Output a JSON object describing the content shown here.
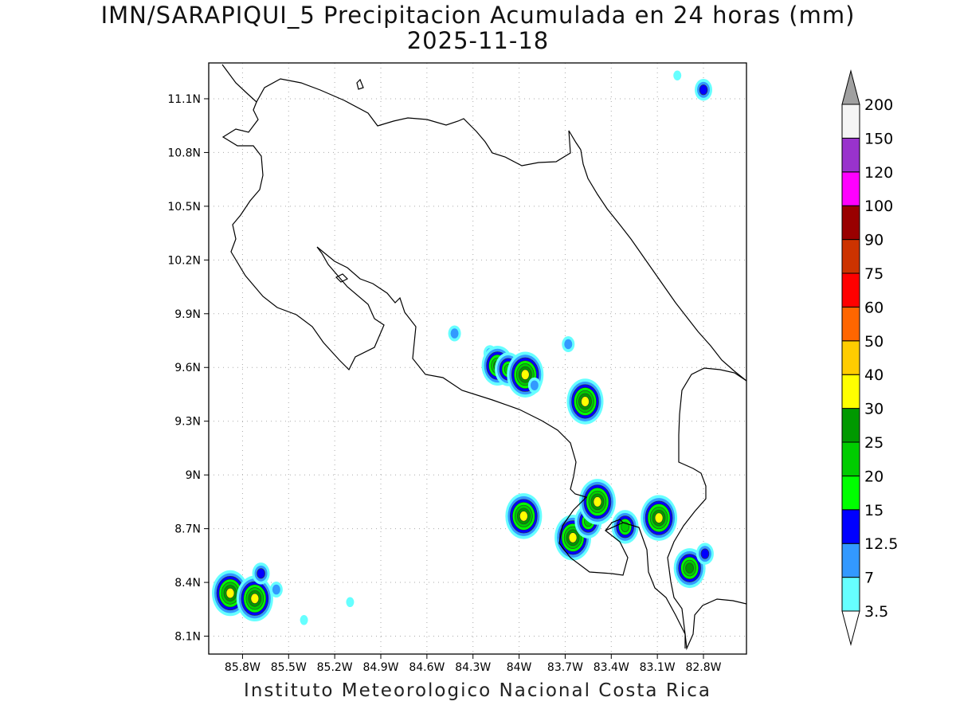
{
  "title_line1": "IMN/SARAPIQUI_5 Precipitacion Acumulada en 24 horas (mm)",
  "title_line2": "2025-11-18",
  "footer": "Instituto Meteorologico Nacional Costa Rica",
  "map": {
    "lon_range": [
      -86.02,
      -82.52
    ],
    "lat_range": [
      8.0,
      11.3
    ],
    "lon_ticks": [
      {
        "value": -85.8,
        "label": "85.8W"
      },
      {
        "value": -85.5,
        "label": "85.5W"
      },
      {
        "value": -85.2,
        "label": "85.2W"
      },
      {
        "value": -84.9,
        "label": "84.9W"
      },
      {
        "value": -84.6,
        "label": "84.6W"
      },
      {
        "value": -84.3,
        "label": "84.3W"
      },
      {
        "value": -84.0,
        "label": "84W"
      },
      {
        "value": -83.7,
        "label": "83.7W"
      },
      {
        "value": -83.4,
        "label": "83.4W"
      },
      {
        "value": -83.1,
        "label": "83.1W"
      },
      {
        "value": -82.8,
        "label": "82.8W"
      }
    ],
    "lat_ticks": [
      {
        "value": 8.1,
        "label": "8.1N"
      },
      {
        "value": 8.4,
        "label": "8.4N"
      },
      {
        "value": 8.7,
        "label": "8.7N"
      },
      {
        "value": 9.0,
        "label": "9N"
      },
      {
        "value": 9.3,
        "label": "9.3N"
      },
      {
        "value": 9.6,
        "label": "9.6N"
      },
      {
        "value": 9.9,
        "label": "9.9N"
      },
      {
        "value": 10.2,
        "label": "10.2N"
      },
      {
        "value": 10.5,
        "label": "10.5N"
      },
      {
        "value": 10.8,
        "label": "10.8N"
      },
      {
        "value": 11.1,
        "label": "11.1N"
      }
    ],
    "grid": "dotted",
    "precip_cells": [
      {
        "lon": -85.88,
        "lat": 8.34,
        "level": 30
      },
      {
        "lon": -85.72,
        "lat": 8.31,
        "level": 30
      },
      {
        "lon": -85.68,
        "lat": 8.45,
        "level": 12.5
      },
      {
        "lon": -85.58,
        "lat": 8.36,
        "level": 7
      },
      {
        "lon": -85.4,
        "lat": 8.19,
        "level": 3.5
      },
      {
        "lon": -85.1,
        "lat": 8.29,
        "level": 3.5
      },
      {
        "lon": -84.42,
        "lat": 9.79,
        "level": 7
      },
      {
        "lon": -84.19,
        "lat": 9.68,
        "level": 7
      },
      {
        "lon": -84.14,
        "lat": 9.61,
        "level": 25
      },
      {
        "lon": -84.07,
        "lat": 9.59,
        "level": 20
      },
      {
        "lon": -83.96,
        "lat": 9.56,
        "level": 30
      },
      {
        "lon": -83.9,
        "lat": 9.5,
        "level": 7
      },
      {
        "lon": -83.68,
        "lat": 9.73,
        "level": 7
      },
      {
        "lon": -83.57,
        "lat": 9.41,
        "level": 30
      },
      {
        "lon": -83.97,
        "lat": 8.77,
        "level": 30
      },
      {
        "lon": -83.65,
        "lat": 8.65,
        "level": 30
      },
      {
        "lon": -83.55,
        "lat": 8.74,
        "level": 20
      },
      {
        "lon": -83.49,
        "lat": 8.85,
        "level": 30
      },
      {
        "lon": -83.31,
        "lat": 8.71,
        "level": 20
      },
      {
        "lon": -83.09,
        "lat": 8.76,
        "level": 30
      },
      {
        "lon": -82.89,
        "lat": 8.48,
        "level": 25
      },
      {
        "lon": -82.79,
        "lat": 8.56,
        "level": 12.5
      },
      {
        "lon": -82.8,
        "lat": 11.15,
        "level": 12.5
      },
      {
        "lon": -82.97,
        "lat": 11.23,
        "level": 3.5
      }
    ]
  },
  "colorbar": {
    "labels": [
      "3.5",
      "7",
      "12.5",
      "15",
      "20",
      "25",
      "30",
      "40",
      "50",
      "60",
      "75",
      "90",
      "100",
      "120",
      "150",
      "200"
    ],
    "colors": [
      "#66ffff",
      "#3399ff",
      "#0000ff",
      "#00ff00",
      "#00cc00",
      "#009900",
      "#ffff00",
      "#ffcc00",
      "#ff6600",
      "#ff0000",
      "#cc3300",
      "#990000",
      "#ff00ff",
      "#9933cc",
      "#f5f5f5",
      "#a0a0a0"
    ],
    "extend_low_color": "#ffffff",
    "extend_high_color": "#a0a0a0"
  }
}
